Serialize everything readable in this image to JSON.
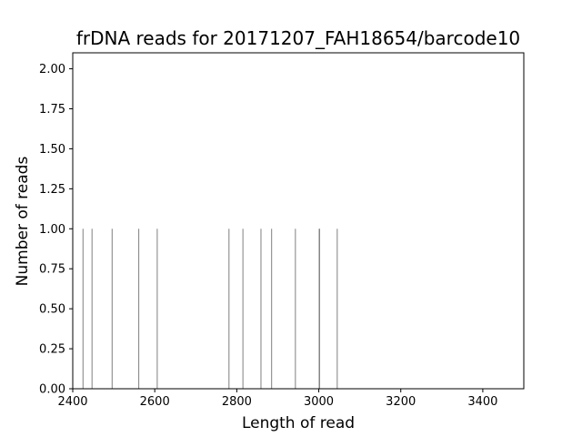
{
  "chart_data": {
    "type": "bar",
    "title": "frDNA reads for 20171207_FAH18654/barcode10",
    "xlabel": "Length of read",
    "ylabel": "Number of reads",
    "xlim": [
      2400,
      3500
    ],
    "ylim": [
      0,
      2.1
    ],
    "xticks": [
      2400,
      2600,
      2800,
      3000,
      3200,
      3400
    ],
    "xtick_labels": [
      "2400",
      "2600",
      "2800",
      "3000",
      "3200",
      "3400"
    ],
    "yticks": [
      0,
      0.25,
      0.5,
      0.75,
      1.0,
      1.25,
      1.5,
      1.75,
      2.0
    ],
    "ytick_labels": [
      "0.00",
      "0.25",
      "0.50",
      "0.75",
      "1.00",
      "1.25",
      "1.50",
      "1.75",
      "2.00"
    ],
    "bar_color": "#808080",
    "grid": false,
    "series": [
      {
        "x": [
          2425,
          2447,
          2496,
          2561,
          2606,
          2781,
          2815,
          2859,
          2885,
          2943,
          3001,
          3002,
          3045
        ],
        "values": [
          1,
          1,
          1,
          1,
          1,
          1,
          1,
          1,
          1,
          1,
          1,
          1,
          1
        ]
      }
    ]
  }
}
